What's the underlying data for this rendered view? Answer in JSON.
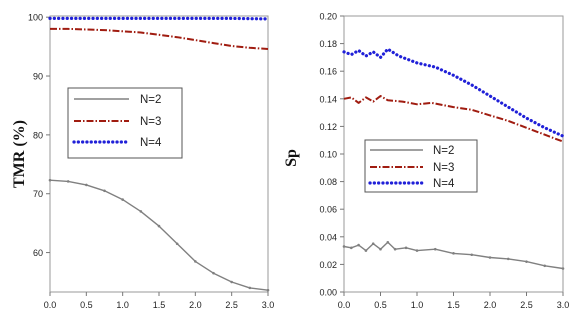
{
  "colors": {
    "n2": "#808080",
    "n3": "#a01c10",
    "n4": "#2020d8",
    "frame": "#9a9a9a",
    "tick_text": "#222222"
  },
  "chart_data": [
    {
      "type": "line",
      "title": "",
      "xlabel": "",
      "ylabel": "TMR (%)",
      "xlim": [
        0,
        3
      ],
      "ylim": [
        53.3,
        100.2
      ],
      "xticks": [
        0.0,
        0.5,
        1.0,
        1.5,
        2.0,
        2.5,
        3.0
      ],
      "xtick_labels": [
        "0.0",
        "0.5",
        "1.0",
        "1.5",
        "2.0",
        "2.5",
        "3.0"
      ],
      "yticks": [
        60,
        70,
        80,
        90,
        100
      ],
      "ytick_labels": [
        "60",
        "70",
        "80",
        "90",
        "100"
      ],
      "grid": false,
      "legend_position": "center-left",
      "series": [
        {
          "name": "N=2",
          "style": "solid-dot",
          "x": [
            0,
            0.25,
            0.5,
            0.75,
            1.0,
            1.25,
            1.5,
            1.75,
            2.0,
            2.25,
            2.5,
            2.75,
            3.0
          ],
          "values": [
            72.3,
            72.1,
            71.5,
            70.5,
            69.0,
            67.0,
            64.5,
            61.5,
            58.5,
            56.5,
            55.0,
            54.0,
            53.6
          ]
        },
        {
          "name": "N=3",
          "style": "dash-dot",
          "x": [
            0,
            0.25,
            0.5,
            0.75,
            1.0,
            1.25,
            1.5,
            1.75,
            2.0,
            2.25,
            2.5,
            2.75,
            3.0
          ],
          "values": [
            98.0,
            98.0,
            97.9,
            97.8,
            97.6,
            97.4,
            97.0,
            96.6,
            96.1,
            95.6,
            95.1,
            94.8,
            94.6
          ]
        },
        {
          "name": "N=4",
          "style": "dotted",
          "x": [
            0,
            0.5,
            1.0,
            1.5,
            2.0,
            2.5,
            3.0
          ],
          "values": [
            99.8,
            99.8,
            99.8,
            99.8,
            99.8,
            99.8,
            99.7
          ]
        }
      ]
    },
    {
      "type": "line",
      "title": "",
      "xlabel": "",
      "ylabel": "Sp",
      "xlim": [
        0,
        3
      ],
      "ylim": [
        0,
        0.2
      ],
      "xticks": [
        0.0,
        0.5,
        1.0,
        1.5,
        2.0,
        2.5,
        3.0
      ],
      "xtick_labels": [
        "0.0",
        "0.5",
        "1.0",
        "1.5",
        "2.0",
        "2.5",
        "3.0"
      ],
      "yticks": [
        0,
        0.02,
        0.04,
        0.06,
        0.08,
        0.1,
        0.12,
        0.14,
        0.16,
        0.18,
        0.2
      ],
      "ytick_labels": [
        "0.00",
        "0.02",
        "0.04",
        "0.06",
        "0.08",
        "0.10",
        "0.12",
        "0.14",
        "0.16",
        "0.18",
        "0.20"
      ],
      "grid": false,
      "legend_position": "bottom-left",
      "series": [
        {
          "name": "N=2",
          "style": "solid-dot",
          "x": [
            0,
            0.1,
            0.2,
            0.3,
            0.4,
            0.5,
            0.6,
            0.7,
            0.85,
            1.0,
            1.25,
            1.5,
            1.75,
            2.0,
            2.25,
            2.5,
            2.75,
            3.0
          ],
          "values": [
            0.033,
            0.032,
            0.034,
            0.03,
            0.035,
            0.031,
            0.036,
            0.031,
            0.032,
            0.03,
            0.031,
            0.028,
            0.027,
            0.025,
            0.024,
            0.022,
            0.019,
            0.017
          ]
        },
        {
          "name": "N=3",
          "style": "dash-dot",
          "x": [
            0,
            0.1,
            0.2,
            0.3,
            0.4,
            0.5,
            0.6,
            0.8,
            1.0,
            1.2,
            1.5,
            1.75,
            2.0,
            2.25,
            2.5,
            2.75,
            3.0
          ],
          "values": [
            0.14,
            0.141,
            0.137,
            0.141,
            0.138,
            0.142,
            0.139,
            0.138,
            0.136,
            0.137,
            0.134,
            0.132,
            0.128,
            0.124,
            0.119,
            0.114,
            0.109
          ]
        },
        {
          "name": "N=4",
          "style": "dotted",
          "x": [
            0,
            0.1,
            0.2,
            0.3,
            0.4,
            0.5,
            0.6,
            0.75,
            1.0,
            1.25,
            1.5,
            1.75,
            2.0,
            2.25,
            2.5,
            2.75,
            3.0
          ],
          "values": [
            0.174,
            0.172,
            0.175,
            0.171,
            0.174,
            0.17,
            0.176,
            0.171,
            0.166,
            0.163,
            0.157,
            0.15,
            0.142,
            0.134,
            0.126,
            0.119,
            0.113
          ]
        }
      ]
    }
  ]
}
